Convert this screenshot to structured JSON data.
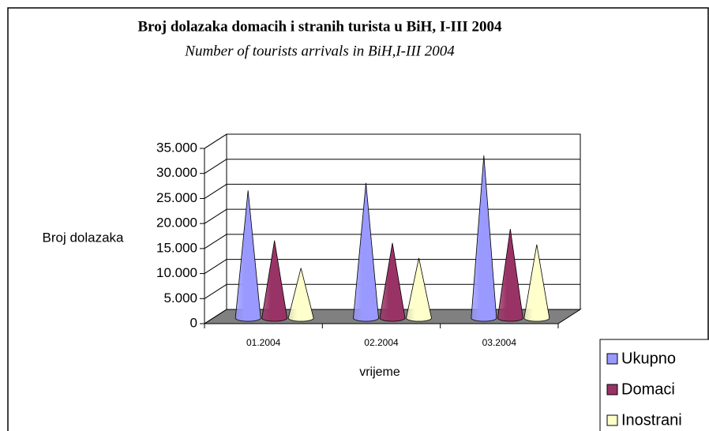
{
  "chart_data": {
    "type": "cone3d",
    "title": "Broj dolazaka domacih i stranih turista u BiH, I-III 2004",
    "subtitle": "Number of tourists arrivals in BiH,I-III 2004",
    "y_label": "Broj dolazaka",
    "x_label": "vrijeme",
    "categories": [
      "01.2004",
      "02.2004",
      "03.2004"
    ],
    "series": [
      {
        "name": "Ukupno",
        "color": "#9999ff",
        "values": [
          25500,
          27000,
          32500
        ]
      },
      {
        "name": "Domaci",
        "color": "#993366",
        "values": [
          15500,
          15000,
          17800
        ]
      },
      {
        "name": "Inostrani",
        "color": "#ffffcc",
        "values": [
          10000,
          12000,
          14700
        ]
      }
    ],
    "ylim": [
      0,
      35000
    ],
    "yticks": [
      0,
      {
        "value": 5000,
        "label": "5.000"
      },
      {
        "value": 10000,
        "label": "10.000"
      },
      {
        "value": 15000,
        "label": "15.000"
      },
      {
        "value": 20000,
        "label": "20.000"
      },
      {
        "value": 25000,
        "label": "25.000"
      },
      {
        "value": 30000,
        "label": "30.000"
      },
      {
        "value": 35000,
        "label": "35.000"
      }
    ],
    "grid": true,
    "legend": "bottom-right",
    "floor_color": "#808080"
  }
}
